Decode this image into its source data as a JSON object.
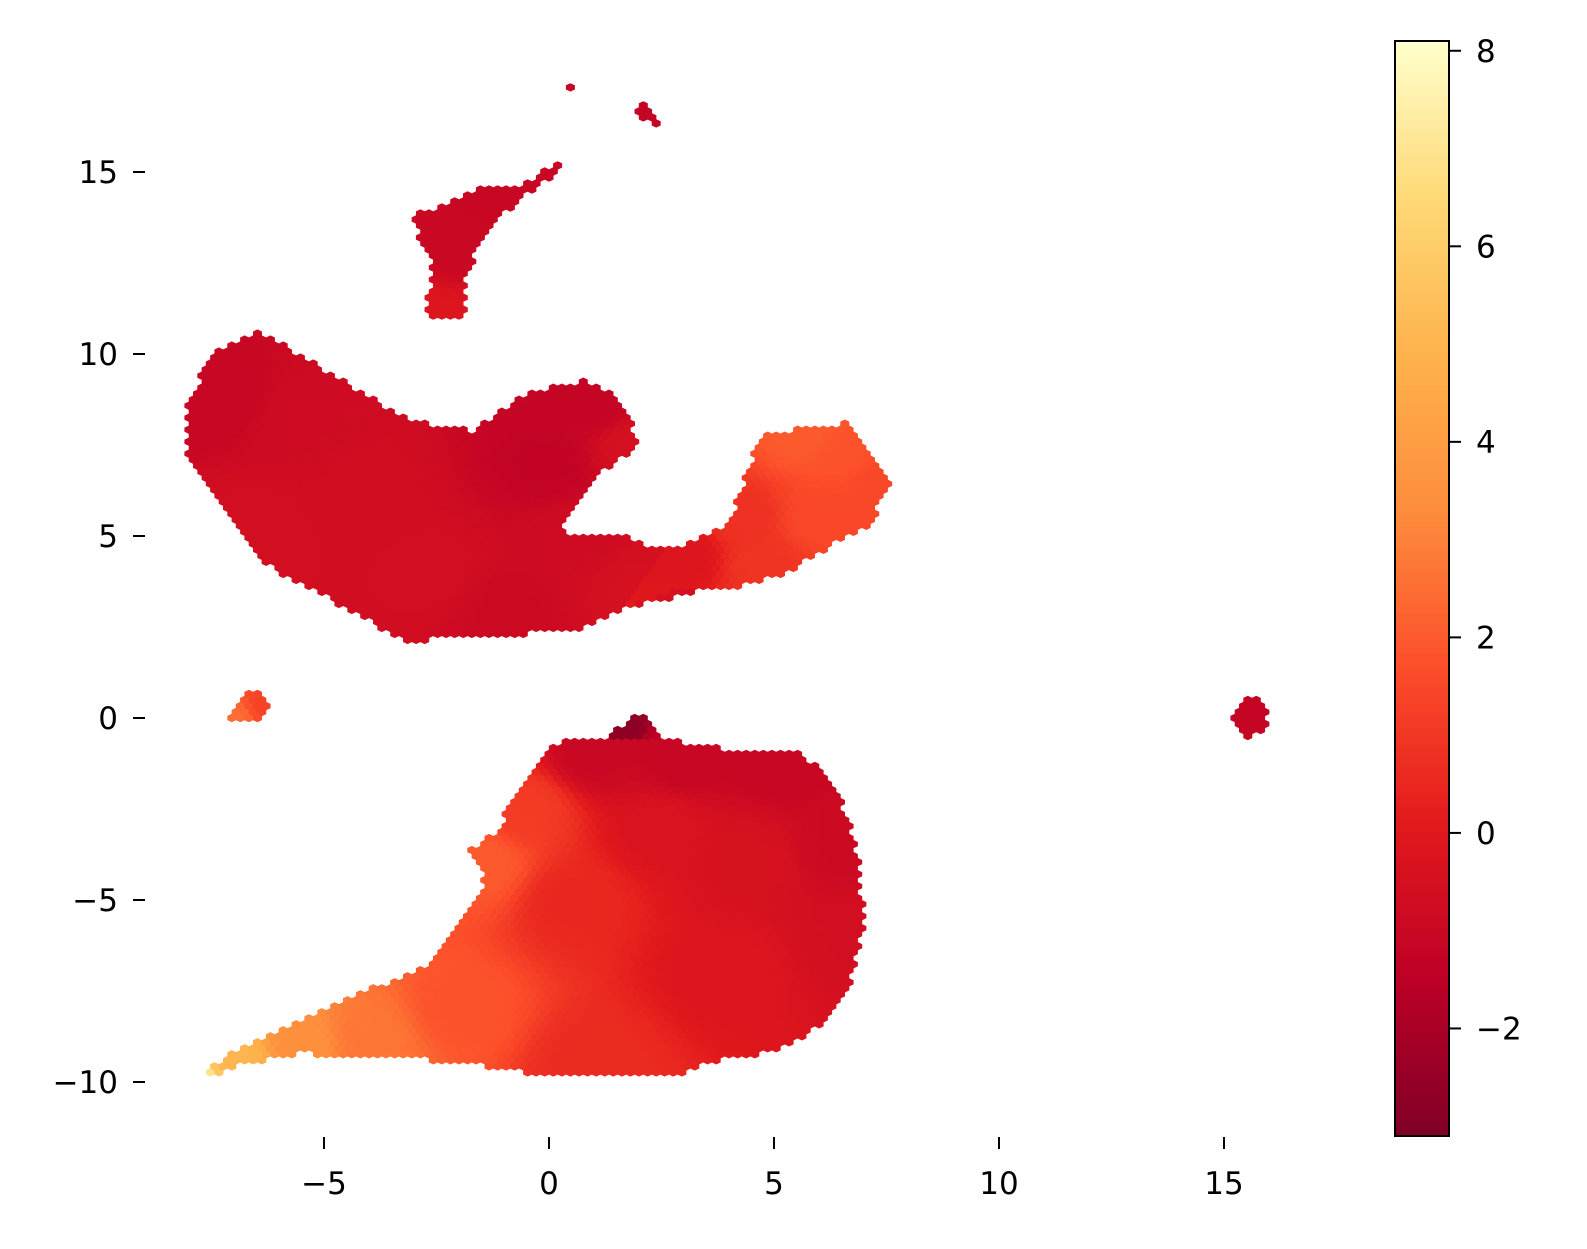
{
  "chart_data": {
    "type": "heatmap",
    "subtype": "hexbin-scatter",
    "title": "",
    "xlabel": "",
    "ylabel": "",
    "xlim": [
      -10,
      19
    ],
    "ylim": [
      -11.5,
      18.5
    ],
    "x_ticks": [
      -5,
      0,
      5,
      10,
      15
    ],
    "x_tick_labels": [
      "−5",
      "0",
      "5",
      "10",
      "15"
    ],
    "y_ticks": [
      -10,
      -5,
      0,
      5,
      10,
      15
    ],
    "y_tick_labels": [
      "−10",
      "−5",
      "0",
      "5",
      "10",
      "15"
    ],
    "grid": false,
    "colormap": "YlOrRd_r",
    "colorbar": {
      "range": [
        -3.1,
        8.1
      ],
      "ticks": [
        -2,
        0,
        2,
        4,
        6,
        8
      ],
      "tick_labels": [
        "−2",
        "0",
        "2",
        "4",
        "6",
        "8"
      ],
      "colors": [
        "#800026",
        "#bd0026",
        "#e31a1c",
        "#fc4e2a",
        "#fd8d3c",
        "#feb24c",
        "#fed976",
        "#ffffcc"
      ]
    },
    "clusters": [
      {
        "name": "upper-left-blob",
        "polygon": [
          [
            -7.4,
            10.1
          ],
          [
            -6.4,
            10.6
          ],
          [
            -5,
            9.6
          ],
          [
            -3.7,
            8.6
          ],
          [
            -2.6,
            8
          ],
          [
            -1.7,
            7.9
          ],
          [
            -0.5,
            8.9
          ],
          [
            0.8,
            9.3
          ],
          [
            1.5,
            8.8
          ],
          [
            2,
            7.7
          ],
          [
            1.7,
            7.2
          ],
          [
            1,
            6.6
          ],
          [
            0.2,
            5.3
          ],
          [
            0.6,
            5.0
          ],
          [
            1.6,
            5.0
          ],
          [
            2.6,
            4.6
          ],
          [
            3.2,
            4.8
          ],
          [
            3.7,
            3.6
          ],
          [
            1.7,
            3.0
          ],
          [
            0.6,
            2.4
          ],
          [
            -1.9,
            2.2
          ],
          [
            -3.2,
            2.1
          ],
          [
            -4.8,
            3.2
          ],
          [
            -6.3,
            4.2
          ],
          [
            -7.3,
            5.8
          ],
          [
            -8,
            7.2
          ],
          [
            -8.1,
            8.6
          ]
        ],
        "values": [
          [
            -7.3,
            8.8,
            -1.1
          ],
          [
            -5.5,
            8.2,
            -0.8
          ],
          [
            -6.5,
            5.2,
            -0.6
          ],
          [
            -4,
            6.5,
            -0.7
          ],
          [
            -2.5,
            4,
            -0.6
          ],
          [
            -1,
            3,
            -0.9
          ],
          [
            0,
            7,
            -1.3
          ],
          [
            1,
            8.5,
            -1.2
          ],
          [
            1.8,
            7.5,
            -0.5
          ],
          [
            0.5,
            5,
            -0.8
          ],
          [
            2,
            3.6,
            -0.5
          ]
        ]
      },
      {
        "name": "right-arm",
        "polygon": [
          [
            2.6,
            4.6
          ],
          [
            4,
            5.3
          ],
          [
            4.7,
            7.8
          ],
          [
            6,
            8.0
          ],
          [
            6.6,
            8.1
          ],
          [
            7.2,
            7.3
          ],
          [
            7.6,
            6.4
          ],
          [
            7.1,
            5.3
          ],
          [
            6.5,
            4.9
          ],
          [
            5.3,
            4.0
          ],
          [
            3.9,
            3.5
          ],
          [
            2.8,
            3.5
          ],
          [
            1.7,
            3.0
          ]
        ],
        "values": [
          [
            3,
            4.5,
            -0.2
          ],
          [
            4.3,
            5.5,
            0.8
          ],
          [
            5.7,
            7.8,
            2.0
          ],
          [
            6.5,
            7.3,
            1.8
          ],
          [
            7.3,
            6.4,
            1.5
          ],
          [
            6,
            5.5,
            1.5
          ],
          [
            4.8,
            4.2,
            0.9
          ]
        ]
      },
      {
        "name": "top-strip",
        "polygon": [
          [
            -3.0,
            13.8
          ],
          [
            -2.4,
            14.1
          ],
          [
            -1.4,
            14.6
          ],
          [
            -0.6,
            14.6
          ],
          [
            0.2,
            15.3
          ],
          [
            0.5,
            15.4
          ],
          [
            0.0,
            14.8
          ],
          [
            -1.3,
            13.6
          ],
          [
            -1.7,
            12.6
          ],
          [
            -1.9,
            11.7
          ],
          [
            -1.9,
            11.1
          ],
          [
            -2.2,
            10.9
          ],
          [
            -2.7,
            11.1
          ],
          [
            -2.6,
            12.5
          ],
          [
            -3.0,
            13.5
          ]
        ],
        "values": [
          [
            -2.2,
            12.8,
            -1.0
          ],
          [
            -0.5,
            14.6,
            -1.1
          ],
          [
            -2.6,
            11.2,
            -0.2
          ]
        ]
      },
      {
        "name": "bottom-blob",
        "polygon": [
          [
            0,
            -0.7
          ],
          [
            1.7,
            -0.5
          ],
          [
            2.6,
            -0.6
          ],
          [
            4.2,
            -0.9
          ],
          [
            5.4,
            -0.9
          ],
          [
            6.1,
            -1.4
          ],
          [
            6.6,
            -2.6
          ],
          [
            6.9,
            -4.0
          ],
          [
            7.0,
            -5.5
          ],
          [
            6.8,
            -7.0
          ],
          [
            6.3,
            -8.2
          ],
          [
            5.6,
            -8.8
          ],
          [
            4.8,
            -9.2
          ],
          [
            3.4,
            -9.5
          ],
          [
            2.8,
            -9.9
          ],
          [
            0,
            -9.9
          ],
          [
            -1.2,
            -9.6
          ],
          [
            -2.7,
            -9.4
          ],
          [
            -4,
            -9.4
          ],
          [
            -5.5,
            -9.2
          ],
          [
            -7,
            -9.6
          ],
          [
            -7.9,
            -10.0
          ],
          [
            -7,
            -9.1
          ],
          [
            -6,
            -8.6
          ],
          [
            -5,
            -8.0
          ],
          [
            -3.5,
            -7.2
          ],
          [
            -2.6,
            -6.8
          ],
          [
            -1.8,
            -5.4
          ],
          [
            -1.4,
            -4.3
          ],
          [
            -1.8,
            -3.7
          ],
          [
            -1.1,
            -3.0
          ],
          [
            -0.7,
            -2.0
          ],
          [
            -0.2,
            -1.2
          ]
        ],
        "values": [
          [
            1,
            -1,
            -1.0
          ],
          [
            3,
            -1.2,
            -1.1
          ],
          [
            5.2,
            -1.2,
            -1.1
          ],
          [
            6.5,
            -3.5,
            -0.9
          ],
          [
            6.8,
            -6,
            -0.6
          ],
          [
            4.5,
            -4,
            -0.4
          ],
          [
            2.5,
            -3,
            -0.3
          ],
          [
            4,
            -7,
            -0.2
          ],
          [
            0.5,
            -5,
            0.5
          ],
          [
            -0.5,
            -2.5,
            1.1
          ],
          [
            -1.5,
            -4,
            2.0
          ],
          [
            1,
            -9.5,
            0.6
          ],
          [
            -2,
            -8,
            1.8
          ],
          [
            -4,
            -8.8,
            2.7
          ],
          [
            -5.5,
            -9,
            3.4
          ],
          [
            -7,
            -9.4,
            5.0
          ],
          [
            -7.9,
            -10,
            7.6
          ]
        ]
      },
      {
        "name": "small-triangle",
        "polygon": [
          [
            1.5,
            -0.3
          ],
          [
            2.1,
            0.2
          ],
          [
            2.5,
            -0.5
          ],
          [
            2.0,
            -0.6
          ],
          [
            1.3,
            -0.6
          ]
        ],
        "values": [
          [
            1.9,
            -0.3,
            -2.8
          ],
          [
            2.4,
            -0.5,
            -1.4
          ]
        ]
      },
      {
        "name": "left-small",
        "polygon": [
          [
            -7.0,
            0.4
          ],
          [
            -6.8,
            0.7
          ],
          [
            -6.5,
            0.7
          ],
          [
            -6.2,
            0.4
          ],
          [
            -6.3,
            0.0
          ],
          [
            -6.6,
            -0.1
          ],
          [
            -6.6,
            0.0
          ],
          [
            -7.0,
            -0.1
          ],
          [
            -7.1,
            0.1
          ]
        ],
        "values": [
          [
            -6.9,
            0.1,
            2.5
          ],
          [
            -6.4,
            0.3,
            1.3
          ]
        ]
      },
      {
        "name": "right-small",
        "polygon": [
          [
            15.4,
            0.6
          ],
          [
            15.7,
            0.6
          ],
          [
            15.9,
            0.3
          ],
          [
            16.0,
            0.0
          ],
          [
            15.8,
            -0.4
          ],
          [
            15.5,
            -0.6
          ],
          [
            15.3,
            -0.2
          ],
          [
            15.2,
            0.1
          ]
        ],
        "values": [
          [
            15.6,
            0,
            -1.2
          ]
        ]
      },
      {
        "name": "top-dot-1",
        "polygon": [
          [
            0.3,
            17.3
          ],
          [
            0.5,
            17.45
          ],
          [
            0.7,
            17.3
          ],
          [
            0.5,
            17.1
          ]
        ],
        "values": [
          [
            0.5,
            17.3,
            -1.2
          ]
        ]
      },
      {
        "name": "top-dot-2",
        "polygon": [
          [
            1.9,
            16.9
          ],
          [
            2.15,
            16.95
          ],
          [
            2.5,
            16.4
          ],
          [
            2.3,
            16.2
          ],
          [
            2.0,
            16.6
          ]
        ],
        "values": [
          [
            2.2,
            16.6,
            -1.2
          ]
        ]
      }
    ]
  }
}
